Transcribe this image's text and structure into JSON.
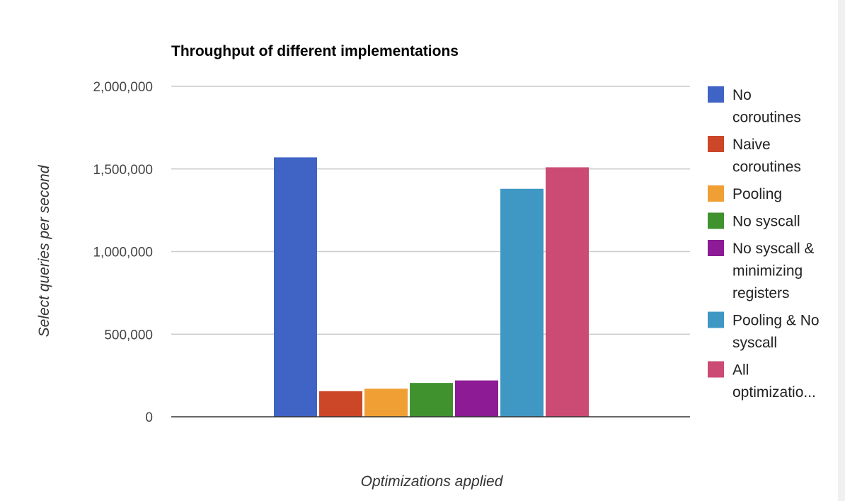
{
  "chart_data": {
    "type": "bar",
    "title": "Throughput of different implementations",
    "xlabel": "Optimizations applied",
    "ylabel": "Select queries per second",
    "ylim": [
      0,
      2000000
    ],
    "yticks": [
      0,
      500000,
      1000000,
      1500000,
      2000000
    ],
    "ytick_labels": [
      "0",
      "500,000",
      "1,000,000",
      "1,500,000",
      "2,000,000"
    ],
    "grid": true,
    "legend_position": "right",
    "categories": [
      ""
    ],
    "series": [
      {
        "name": "No coroutines",
        "legend_lines": [
          "No",
          "coroutines"
        ],
        "color": "#3f64c6",
        "values": [
          1570000
        ]
      },
      {
        "name": "Naive coroutines",
        "legend_lines": [
          "Naive",
          "coroutines"
        ],
        "color": "#cc4628",
        "values": [
          155000
        ]
      },
      {
        "name": "Pooling",
        "legend_lines": [
          "Pooling"
        ],
        "color": "#f09f35",
        "values": [
          170000
        ]
      },
      {
        "name": "No syscall",
        "legend_lines": [
          "No syscall"
        ],
        "color": "#40922f",
        "values": [
          205000
        ]
      },
      {
        "name": "No syscall & minimizing registers",
        "legend_lines": [
          "No syscall &",
          "minimizing",
          "registers"
        ],
        "color": "#8c1b95",
        "values": [
          220000
        ]
      },
      {
        "name": "Pooling & No syscall",
        "legend_lines": [
          "Pooling & No",
          "syscall"
        ],
        "color": "#3f97c4",
        "values": [
          1380000
        ]
      },
      {
        "name": "All optimizatio...",
        "legend_lines": [
          "All",
          "optimizatio..."
        ],
        "color": "#cb4b74",
        "values": [
          1510000
        ]
      }
    ]
  }
}
